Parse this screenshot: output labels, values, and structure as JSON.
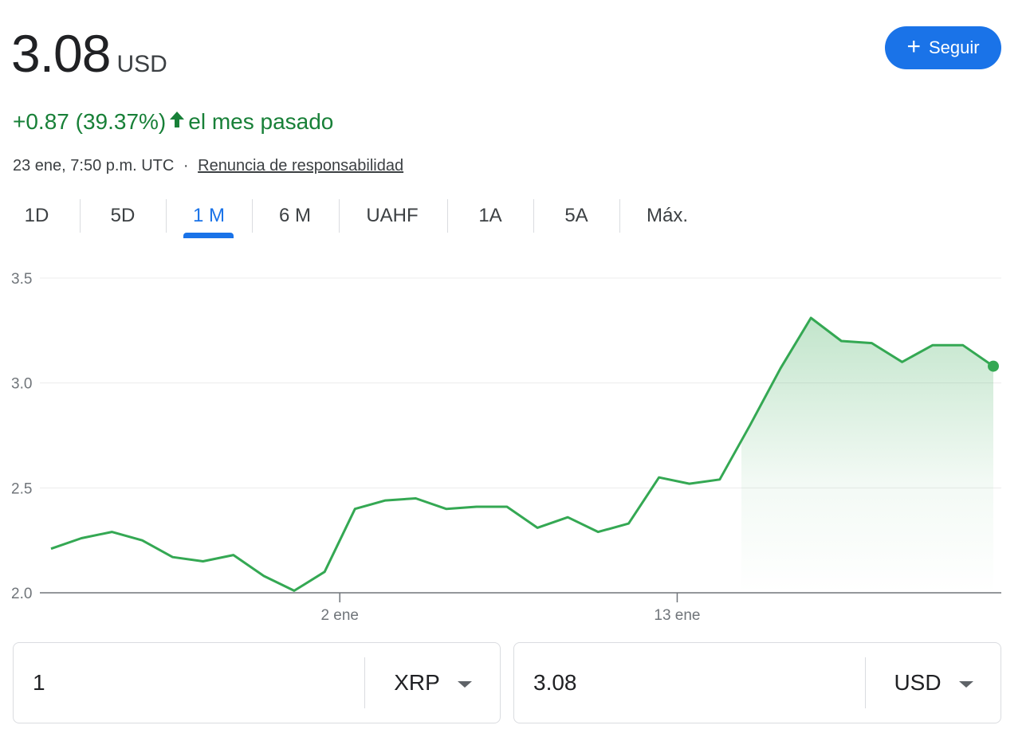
{
  "quote": {
    "price": "3.08",
    "currency": "USD",
    "change": "+0.87 (39.37%)",
    "period": "el mes pasado",
    "timestamp": "23 ene, 7:50 p.m. UTC",
    "separator": "·",
    "disclaimer": "Renuncia de responsabilidad"
  },
  "follow": {
    "label": "Seguir",
    "icon": "plus-icon"
  },
  "tabs": [
    {
      "label": "1D"
    },
    {
      "label": "5D"
    },
    {
      "label": "1 M",
      "active": true
    },
    {
      "label": "6 M"
    },
    {
      "label": "UAHF"
    },
    {
      "label": "1A"
    },
    {
      "label": "5A"
    },
    {
      "label": "Máx."
    }
  ],
  "colors": {
    "accent": "#1a73e8",
    "positive": "#188038",
    "line": "#34a853"
  },
  "chart_data": {
    "type": "line",
    "y_ticks": [
      "3.5",
      "3.0",
      "2.5",
      "2.0"
    ],
    "ylim": [
      2.0,
      3.5
    ],
    "x_ticks": [
      "2 ene",
      "13 ene"
    ],
    "grid": true,
    "series": [
      {
        "values": [
          2.21,
          2.26,
          2.29,
          2.25,
          2.17,
          2.15,
          2.18,
          2.08,
          2.01,
          2.1,
          2.4,
          2.44,
          2.45,
          2.4,
          2.41,
          2.41,
          2.31,
          2.36,
          2.29,
          2.33,
          2.55,
          2.52,
          2.54,
          2.8,
          3.07,
          3.31,
          3.2,
          3.19,
          3.1,
          3.18,
          3.18,
          3.08
        ]
      }
    ]
  },
  "converter": {
    "from": {
      "amount": "1",
      "unit": "XRP"
    },
    "to": {
      "amount": "3.08",
      "unit": "USD"
    }
  }
}
